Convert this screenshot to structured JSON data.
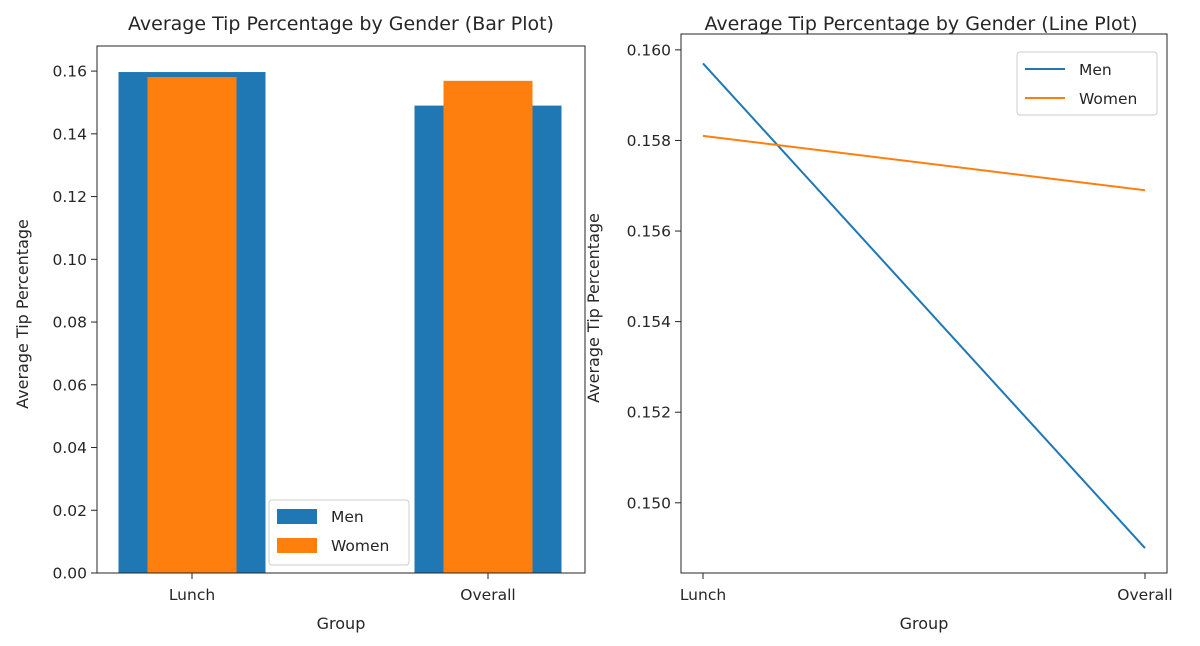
{
  "chart_data": [
    {
      "type": "bar",
      "title": "Average Tip Percentage by Gender (Bar Plot)",
      "xlabel": "Group",
      "ylabel": "Average Tip Percentage",
      "categories": [
        "Lunch",
        "Overall"
      ],
      "series": [
        {
          "name": "Men",
          "color": "#1f77b4",
          "values": [
            0.1597,
            0.149
          ]
        },
        {
          "name": "Women",
          "color": "#ff7f0e",
          "values": [
            0.1581,
            0.1569
          ]
        }
      ],
      "ylim": [
        0,
        0.168
      ],
      "yticks": [
        "0.00",
        "0.02",
        "0.04",
        "0.06",
        "0.08",
        "0.10",
        "0.12",
        "0.14",
        "0.16"
      ],
      "legend": "lower-right",
      "grid": false
    },
    {
      "type": "line",
      "title": "Average Tip Percentage by Gender (Line Plot)",
      "xlabel": "Group",
      "ylabel": "Average Tip Percentage",
      "x": [
        "Lunch",
        "Overall"
      ],
      "series": [
        {
          "name": "Men",
          "color": "#1f77b4",
          "values": [
            0.1597,
            0.149
          ]
        },
        {
          "name": "Women",
          "color": "#ff7f0e",
          "values": [
            0.1581,
            0.1569
          ]
        }
      ],
      "ylim": [
        0.14845,
        0.16035
      ],
      "yticks": [
        "0.150",
        "0.152",
        "0.154",
        "0.156",
        "0.158",
        "0.160"
      ],
      "legend": "upper-right",
      "grid": false
    }
  ]
}
